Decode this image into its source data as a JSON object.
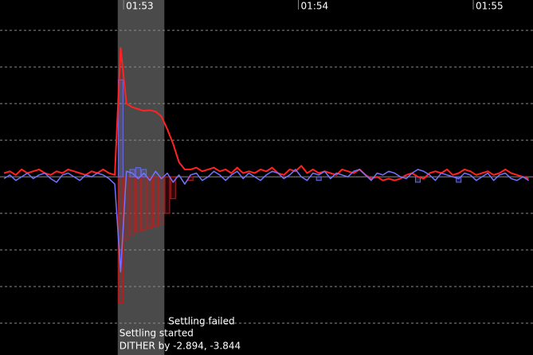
{
  "chart_data": {
    "type": "line",
    "background": "#000000",
    "grid": true,
    "grid_color": "#8a8a8a",
    "xlim": [
      6737.6,
      6920.5
    ],
    "xticks": [
      {
        "value": 6780,
        "label": "01:53"
      },
      {
        "value": 6840,
        "label": "01:54"
      },
      {
        "value": 6900,
        "label": "01:55"
      }
    ],
    "ylim": [
      -4.87,
      4.83
    ],
    "yticks": [
      -4,
      -3,
      -2,
      -1,
      0,
      1,
      2,
      3,
      4
    ],
    "x": [
      6739,
      6741,
      6743,
      6745,
      6747,
      6749,
      6751,
      6753,
      6755,
      6757,
      6759,
      6761,
      6763,
      6765,
      6767,
      6769,
      6771,
      6773,
      6775,
      6777,
      6779,
      6781,
      6783,
      6785,
      6787,
      6789,
      6791,
      6793,
      6795,
      6797,
      6799,
      6801,
      6803,
      6805,
      6807,
      6809,
      6811,
      6813,
      6815,
      6817,
      6819,
      6821,
      6823,
      6825,
      6827,
      6829,
      6831,
      6833,
      6835,
      6837,
      6839,
      6841,
      6843,
      6845,
      6847,
      6849,
      6851,
      6853,
      6855,
      6857,
      6859,
      6861,
      6863,
      6865,
      6867,
      6869,
      6871,
      6873,
      6875,
      6877,
      6879,
      6881,
      6883,
      6885,
      6887,
      6889,
      6891,
      6893,
      6895,
      6897,
      6899,
      6901,
      6903,
      6905,
      6907,
      6909,
      6911,
      6913,
      6915,
      6917,
      6919
    ],
    "series": [
      {
        "color": "#ff2323",
        "values": [
          0.1,
          0.15,
          0.05,
          0.2,
          0.1,
          0.15,
          0.2,
          0.1,
          0.05,
          0.15,
          0.1,
          0.2,
          0.15,
          0.1,
          0.05,
          0.15,
          0.1,
          0.2,
          0.1,
          0.05,
          3.52,
          2.0,
          1.9,
          1.85,
          1.8,
          1.82,
          1.78,
          1.65,
          1.3,
          0.9,
          0.4,
          0.2,
          0.2,
          0.25,
          0.15,
          0.2,
          0.25,
          0.15,
          0.2,
          0.1,
          0.25,
          0.1,
          0.15,
          0.1,
          0.2,
          0.15,
          0.25,
          0.1,
          0.05,
          0.2,
          0.15,
          0.3,
          0.1,
          0.2,
          0.1,
          0.15,
          0.1,
          0.05,
          0.2,
          0.15,
          0.1,
          0.2,
          0.05,
          -0.05,
          0.0,
          -0.1,
          -0.05,
          -0.1,
          -0.05,
          0.05,
          0.1,
          0.0,
          -0.05,
          0.1,
          0.15,
          0.1,
          0.2,
          0.05,
          0.1,
          0.2,
          0.15,
          0.05,
          0.1,
          0.15,
          0.05,
          0.1,
          0.2,
          0.1,
          0.05,
          0.0,
          -0.05
        ]
      },
      {
        "color": "#7373ff",
        "values": [
          -0.05,
          0.05,
          -0.1,
          0.0,
          0.1,
          -0.05,
          0.05,
          0.1,
          -0.05,
          -0.15,
          0.05,
          0.1,
          0.0,
          -0.1,
          0.05,
          0.0,
          0.1,
          0.05,
          -0.05,
          -0.2,
          -2.6,
          0.15,
          0.1,
          -0.05,
          0.1,
          -0.1,
          0.15,
          -0.05,
          0.1,
          -0.15,
          0.05,
          -0.2,
          0.05,
          0.1,
          -0.1,
          0.0,
          0.15,
          0.05,
          -0.1,
          0.05,
          0.15,
          -0.05,
          0.1,
          0.0,
          -0.1,
          0.05,
          0.15,
          0.1,
          -0.05,
          0.05,
          0.2,
          0.0,
          -0.1,
          0.1,
          0.05,
          0.15,
          -0.05,
          0.1,
          0.05,
          0.0,
          0.15,
          0.2,
          0.05,
          -0.1,
          0.1,
          0.05,
          0.15,
          0.1,
          0.0,
          -0.05,
          0.1,
          0.2,
          0.15,
          0.05,
          -0.1,
          0.1,
          0.05,
          0.0,
          -0.05,
          0.1,
          0.05,
          -0.1,
          0.0,
          0.1,
          -0.1,
          0.05,
          0.1,
          -0.05,
          -0.1,
          0.0,
          -0.1
        ]
      }
    ],
    "bars": [
      {
        "color": "#b42020",
        "x": [
          6779,
          6781,
          6783,
          6785,
          6787,
          6789,
          6791,
          6793,
          6795,
          6797,
          6803
        ],
        "values": [
          -3.45,
          -1.7,
          -1.6,
          -1.5,
          -1.45,
          -1.4,
          -1.35,
          -1.3,
          -1.0,
          -0.6,
          -0.1
        ]
      },
      {
        "color": "#6a6ae0",
        "x": [
          6779,
          6783,
          6785,
          6787,
          6847,
          6881,
          6895
        ],
        "values": [
          2.65,
          0.2,
          0.25,
          0.2,
          -0.1,
          -0.15,
          -0.15
        ]
      }
    ],
    "settling": {
      "start": 6778,
      "end": 6794,
      "color": "#4a4a4a",
      "failed": "Settling failed",
      "started": "Settling started",
      "dither": "DITHER by -2.894, -3.844"
    }
  }
}
